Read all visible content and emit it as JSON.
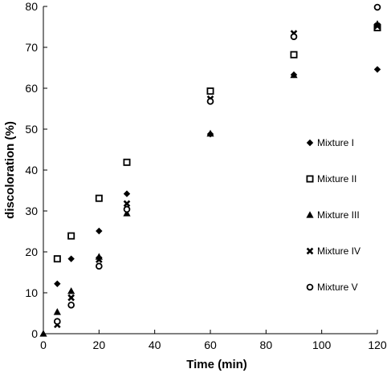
{
  "chart_data": {
    "type": "scatter",
    "title": "",
    "xlabel": "Time (min)",
    "ylabel": "discoloration (%)",
    "xlim": [
      0,
      120
    ],
    "ylim": [
      0,
      80
    ],
    "xticks": [
      0,
      20,
      40,
      60,
      80,
      100,
      120
    ],
    "yticks": [
      0,
      10,
      20,
      30,
      40,
      50,
      60,
      70,
      80
    ],
    "grid": false,
    "legend_position": "right",
    "series": [
      {
        "name": "Mixture I",
        "marker": "diamond",
        "color": "#000000",
        "x": [
          5,
          10,
          20,
          30,
          60,
          90,
          120
        ],
        "y": [
          12.2,
          18.3,
          25.1,
          34.2,
          48.8,
          63.3,
          64.6
        ]
      },
      {
        "name": "Mixture II",
        "marker": "square",
        "color": "#000000",
        "x": [
          5,
          10,
          20,
          30,
          60,
          90,
          120
        ],
        "y": [
          18.3,
          23.9,
          33.1,
          41.9,
          59.3,
          68.2,
          74.8
        ]
      },
      {
        "name": "Mixture III",
        "marker": "triangle",
        "color": "#000000",
        "x": [
          0,
          5,
          10,
          20,
          30,
          60,
          90,
          120
        ],
        "y": [
          0,
          5.3,
          10.4,
          18.8,
          29.4,
          48.9,
          63.2,
          75.7
        ]
      },
      {
        "name": "Mixture IV",
        "marker": "cross",
        "color": "#000000",
        "x": [
          5,
          10,
          20,
          30,
          60,
          90,
          120
        ],
        "y": [
          2.2,
          8.8,
          18.1,
          31.8,
          57.4,
          73.4,
          75.2
        ]
      },
      {
        "name": "Mixture V",
        "marker": "circle",
        "color": "#000000",
        "x": [
          5,
          10,
          20,
          30,
          60,
          90,
          120
        ],
        "y": [
          3.0,
          7.0,
          16.5,
          30.4,
          56.8,
          72.6,
          79.8
        ]
      }
    ]
  }
}
